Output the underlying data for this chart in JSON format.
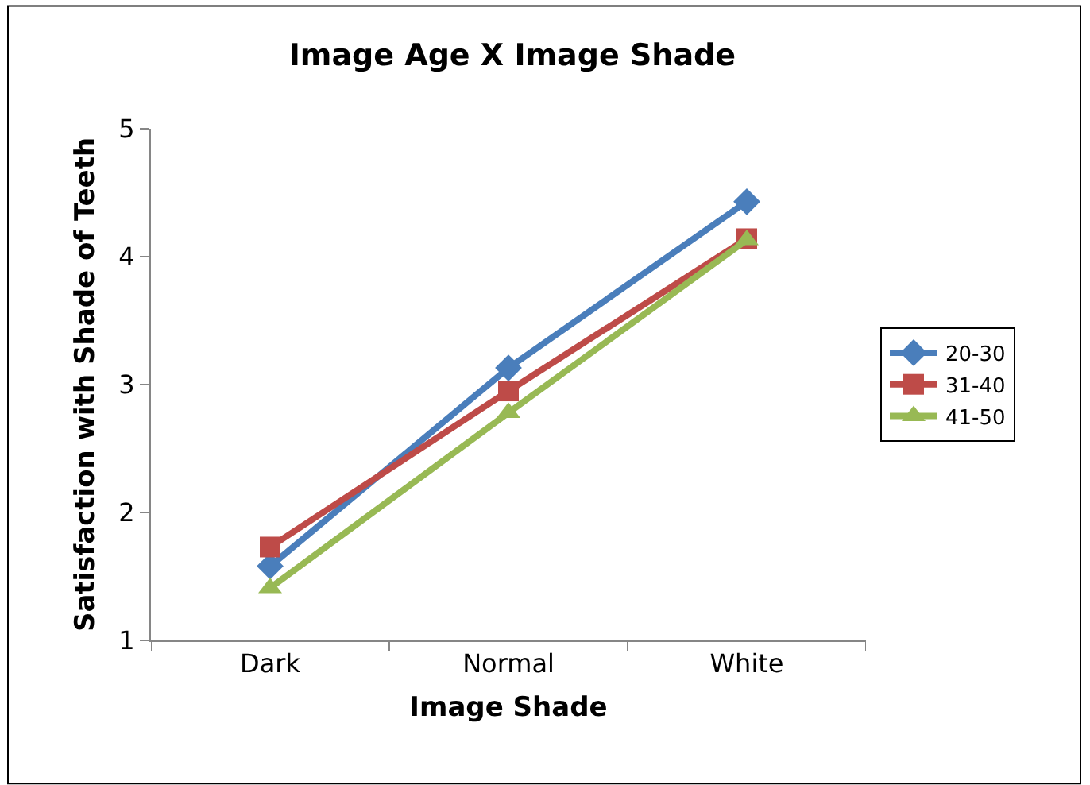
{
  "chart_data": {
    "type": "line",
    "title": "Image Age X Image Shade",
    "xlabel": "Image Shade",
    "ylabel": "Satisfaction with Shade of Teeth",
    "categories": [
      "Dark",
      "Normal",
      "White"
    ],
    "series": [
      {
        "name": "20-30",
        "color": "#4a7ebb",
        "marker": "diamond",
        "values": [
          1.58,
          3.13,
          4.43
        ]
      },
      {
        "name": "31-40",
        "color": "#be4b48",
        "marker": "square",
        "values": [
          1.73,
          2.95,
          4.14
        ]
      },
      {
        "name": "41-50",
        "color": "#98b954",
        "marker": "triangle",
        "values": [
          1.41,
          2.78,
          4.13
        ]
      }
    ],
    "ylim": [
      1,
      5
    ],
    "yticks": [
      1,
      2,
      3,
      4,
      5
    ],
    "grid": false,
    "legend": "right",
    "line_style": "solid"
  }
}
